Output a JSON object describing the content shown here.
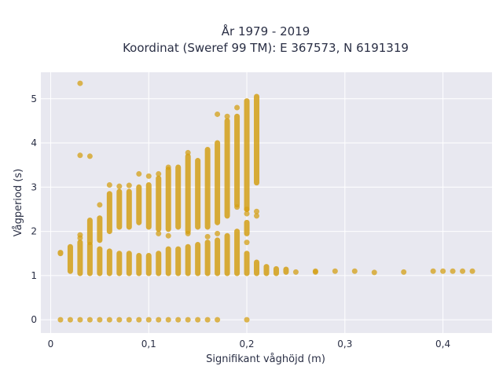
{
  "chart_data": {
    "type": "scatter",
    "title_lines": [
      "År 1979 - 2019",
      "Koordinat (Sweref 99 TM): E 367573, N 6191319"
    ],
    "xlabel": "Signifikant våghöjd (m)",
    "ylabel": "Vågperiod (s)",
    "xlim": [
      -0.01,
      0.45
    ],
    "ylim": [
      -0.3,
      5.6
    ],
    "x_ticks": [
      0,
      0.1,
      0.2,
      0.3,
      0.4
    ],
    "x_tick_labels": [
      "0",
      "0,1",
      "0,2",
      "0,3",
      "0,4"
    ],
    "y_ticks": [
      0,
      1,
      2,
      3,
      4,
      5
    ],
    "y_tick_labels": [
      "0",
      "1",
      "2",
      "3",
      "4",
      "5"
    ],
    "grid": true,
    "marker_color": "#d4a017",
    "background": "#e8e8f0",
    "columns": [
      {
        "x": 0.01,
        "segments": [
          [
            1.5,
            1.52
          ]
        ],
        "points": [
          0
        ]
      },
      {
        "x": 0.02,
        "segments": [
          [
            1.1,
            1.65
          ]
        ],
        "points": [
          0
        ]
      },
      {
        "x": 0.03,
        "segments": [
          [
            1.05,
            1.75
          ]
        ],
        "points": [
          0,
          1.85,
          1.92,
          3.72,
          5.35
        ]
      },
      {
        "x": 0.04,
        "segments": [
          [
            1.05,
            1.7
          ],
          [
            1.75,
            2.25
          ]
        ],
        "points": [
          0,
          3.7
        ]
      },
      {
        "x": 0.05,
        "segments": [
          [
            1.05,
            1.6
          ],
          [
            1.8,
            2.3
          ]
        ],
        "points": [
          0,
          2.6
        ]
      },
      {
        "x": 0.06,
        "segments": [
          [
            1.05,
            1.55
          ],
          [
            2.0,
            2.85
          ]
        ],
        "points": [
          0,
          3.05
        ]
      },
      {
        "x": 0.07,
        "segments": [
          [
            1.05,
            1.5
          ],
          [
            2.1,
            2.9
          ]
        ],
        "points": [
          0,
          3.02
        ]
      },
      {
        "x": 0.08,
        "segments": [
          [
            1.05,
            1.5
          ],
          [
            2.1,
            2.9
          ]
        ],
        "points": [
          0,
          3.04
        ]
      },
      {
        "x": 0.09,
        "segments": [
          [
            1.05,
            1.45
          ],
          [
            2.2,
            3.0
          ]
        ],
        "points": [
          0,
          3.3
        ]
      },
      {
        "x": 0.1,
        "segments": [
          [
            1.05,
            1.45
          ],
          [
            2.1,
            3.05
          ]
        ],
        "points": [
          0,
          3.25
        ]
      },
      {
        "x": 0.11,
        "segments": [
          [
            1.05,
            1.5
          ],
          [
            2.05,
            3.2
          ]
        ],
        "points": [
          0,
          1.95,
          3.3
        ]
      },
      {
        "x": 0.12,
        "segments": [
          [
            1.05,
            1.6
          ],
          [
            2.05,
            3.4
          ]
        ],
        "points": [
          0,
          1.9,
          3.45
        ]
      },
      {
        "x": 0.13,
        "segments": [
          [
            1.05,
            1.6
          ],
          [
            2.1,
            3.45
          ]
        ],
        "points": [
          0
        ]
      },
      {
        "x": 0.14,
        "segments": [
          [
            1.05,
            1.65
          ],
          [
            2.0,
            3.7
          ]
        ],
        "points": [
          0,
          1.95,
          3.78
        ]
      },
      {
        "x": 0.15,
        "segments": [
          [
            1.05,
            1.7
          ],
          [
            2.1,
            3.6
          ]
        ],
        "points": [
          0
        ]
      },
      {
        "x": 0.16,
        "segments": [
          [
            1.05,
            1.75
          ],
          [
            2.1,
            3.85
          ]
        ],
        "points": [
          0,
          1.88
        ]
      },
      {
        "x": 0.17,
        "segments": [
          [
            1.05,
            1.8
          ],
          [
            2.2,
            4.0
          ]
        ],
        "points": [
          0,
          1.95,
          4.65
        ]
      },
      {
        "x": 0.18,
        "segments": [
          [
            1.05,
            1.9
          ],
          [
            2.35,
            4.5
          ]
        ],
        "points": [
          4.6
        ]
      },
      {
        "x": 0.19,
        "segments": [
          [
            1.05,
            2.0
          ],
          [
            2.6,
            4.6
          ]
        ],
        "points": [
          2.55,
          4.8
        ]
      },
      {
        "x": 0.2,
        "segments": [
          [
            1.05,
            1.5
          ],
          [
            1.95,
            2.2
          ],
          [
            2.5,
            4.95
          ]
        ],
        "points": [
          0,
          1.75,
          2.4,
          2.5
        ]
      },
      {
        "x": 0.21,
        "segments": [
          [
            1.05,
            1.3
          ],
          [
            3.1,
            5.05
          ]
        ],
        "points": [
          2.35,
          2.45
        ]
      },
      {
        "x": 0.22,
        "segments": [
          [
            1.05,
            1.2
          ]
        ],
        "points": []
      },
      {
        "x": 0.23,
        "segments": [
          [
            1.05,
            1.15
          ]
        ],
        "points": []
      },
      {
        "x": 0.24,
        "segments": [
          [
            1.08,
            1.14
          ]
        ],
        "points": []
      },
      {
        "x": 0.25,
        "segments": [],
        "points": [
          1.08
        ]
      },
      {
        "x": 0.27,
        "segments": [],
        "points": [
          1.08,
          1.1
        ]
      },
      {
        "x": 0.29,
        "segments": [],
        "points": [
          1.1
        ]
      },
      {
        "x": 0.31,
        "segments": [],
        "points": [
          1.1
        ]
      },
      {
        "x": 0.33,
        "segments": [],
        "points": [
          1.07
        ]
      },
      {
        "x": 0.36,
        "segments": [],
        "points": [
          1.08
        ]
      },
      {
        "x": 0.39,
        "segments": [],
        "points": [
          1.1
        ]
      },
      {
        "x": 0.4,
        "segments": [],
        "points": [
          1.1
        ]
      },
      {
        "x": 0.41,
        "segments": [],
        "points": [
          1.1
        ]
      },
      {
        "x": 0.42,
        "segments": [],
        "points": [
          1.1
        ]
      },
      {
        "x": 0.43,
        "segments": [],
        "points": [
          1.1
        ]
      }
    ]
  }
}
